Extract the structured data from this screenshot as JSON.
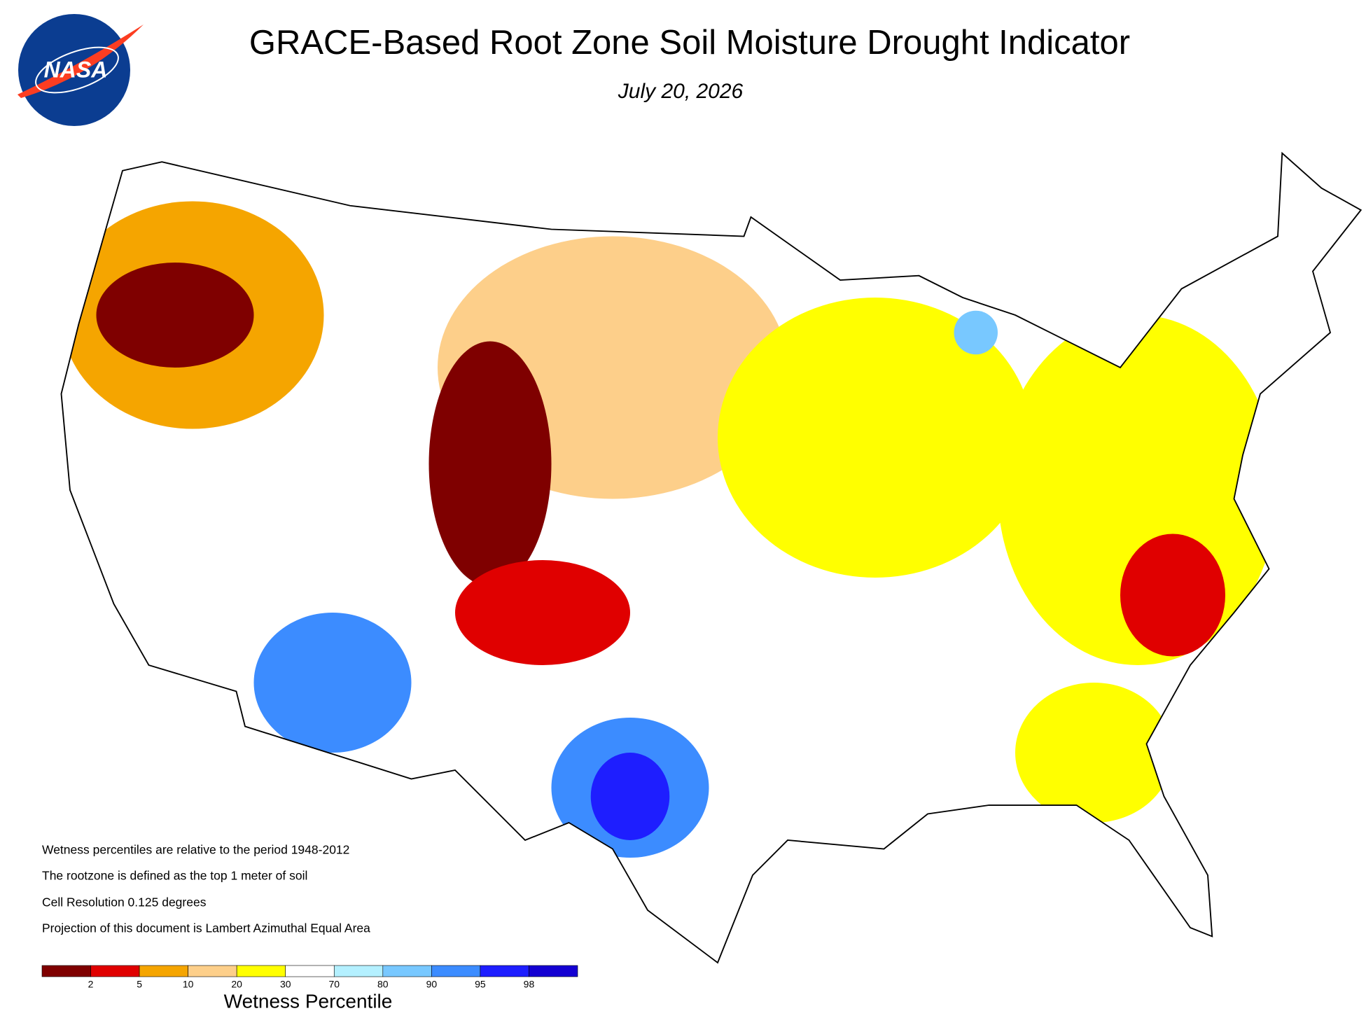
{
  "header": {
    "logo": "NASA",
    "title": "GRACE-Based Root Zone Soil  Moisture Drought Indicator",
    "subtitle": "July 20, 2026"
  },
  "notes": [
    "Wetness percentiles are relative to the period 1948-2012",
    "The rootzone is defined as the top 1 meter of soil",
    "Cell Resolution 0.125 degrees",
    "Projection of this document is Lambert Azimuthal Equal Area"
  ],
  "legend": {
    "title": "Wetness Percentile",
    "colors": [
      "#7f0000",
      "#e00000",
      "#f5a500",
      "#fdcf8a",
      "#ffff00",
      "#ffffff",
      "#b4f0ff",
      "#78c8ff",
      "#3c8cff",
      "#1e1eff",
      "#1400d2"
    ],
    "breaks": [
      2,
      5,
      10,
      20,
      30,
      70,
      80,
      90,
      95,
      98
    ]
  }
}
